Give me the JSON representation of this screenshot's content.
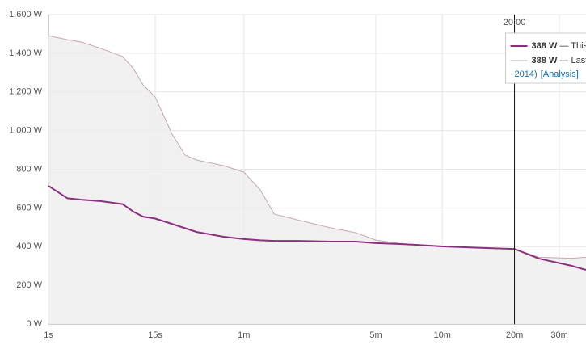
{
  "chart_data": {
    "type": "line",
    "x": [
      1,
      2,
      3,
      5,
      8,
      10,
      12,
      15,
      20,
      25,
      30,
      45,
      60,
      75,
      90,
      120,
      180,
      240,
      300,
      400,
      600,
      900,
      1200,
      1500,
      2000,
      2270
    ],
    "xlim": [
      1,
      2270
    ],
    "log_x": true,
    "xticks": [
      {
        "value": 1,
        "label": "1s"
      },
      {
        "value": 15,
        "label": "15s"
      },
      {
        "value": 60,
        "label": "1m"
      },
      {
        "value": 300,
        "label": "5m"
      },
      {
        "value": 600,
        "label": "10m"
      },
      {
        "value": 1200,
        "label": "20m"
      },
      {
        "value": 1800,
        "label": "30m"
      }
    ],
    "ylim": [
      0,
      1600
    ],
    "yticks": [
      {
        "value": 0,
        "label": "0 W"
      },
      {
        "value": 200,
        "label": "200 W"
      },
      {
        "value": 400,
        "label": "400 W"
      },
      {
        "value": 600,
        "label": "600 W"
      },
      {
        "value": 800,
        "label": "800 W"
      },
      {
        "value": 1000,
        "label": "1,000 W"
      },
      {
        "value": 1200,
        "label": "1,200 W"
      },
      {
        "value": 1400,
        "label": "1,400 W"
      },
      {
        "value": 1600,
        "label": "1,600 W"
      }
    ],
    "grid": true,
    "series": [
      {
        "name": "Last",
        "color": "#c9a6b8",
        "fill": "#ececec",
        "values": [
          1491,
          1470,
          1458,
          1424,
          1383,
          1320,
          1236,
          1174,
          986,
          873,
          848,
          819,
          785,
          693,
          568,
          539,
          497,
          472,
          434,
          415,
          403,
          394,
          388,
          345,
          340,
          345
        ]
      },
      {
        "name": "This",
        "color": "#8c2f7f",
        "fill": "#f1f1f1",
        "values": [
          714,
          650,
          643,
          635,
          620,
          580,
          555,
          545,
          518,
          495,
          476,
          451,
          439,
          433,
          430,
          430,
          426,
          426,
          418,
          413,
          401,
          393,
          388,
          338,
          301,
          280
        ]
      }
    ],
    "tooltip": {
      "x": 1200,
      "title": "20:00",
      "items": [
        {
          "value": "388 W",
          "text": " — This Year"
        },
        {
          "value": "388 W",
          "text": " — Last Year"
        }
      ],
      "footer": "2014)",
      "link": "[Analysis]"
    }
  }
}
